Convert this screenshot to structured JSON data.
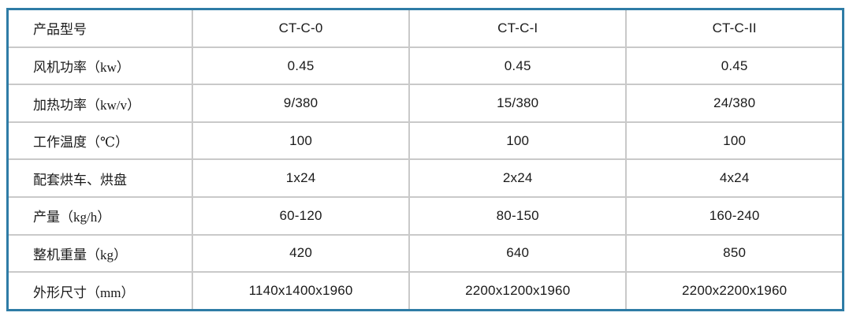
{
  "colors": {
    "outer_border": "#2e7ca6",
    "inner_grid": "#c9c9c9",
    "text": "#1a1a1a",
    "background": "#ffffff"
  },
  "table": {
    "header": {
      "label": "产品型号",
      "models": [
        "CT-C-0",
        "CT-C-I",
        "CT-C-II"
      ]
    },
    "rows": [
      {
        "label": "风机功率（kw）",
        "values": [
          "0.45",
          "0.45",
          "0.45"
        ]
      },
      {
        "label": "加热功率（kw/v）",
        "values": [
          "9/380",
          "15/380",
          "24/380"
        ]
      },
      {
        "label": "工作温度（℃）",
        "values": [
          "100",
          "100",
          "100"
        ]
      },
      {
        "label": "配套烘车、烘盘",
        "values": [
          "1x24",
          "2x24",
          "4x24"
        ]
      },
      {
        "label": "产量（kg/h）",
        "values": [
          "60-120",
          "80-150",
          "160-240"
        ]
      },
      {
        "label": "整机重量（kg）",
        "values": [
          "420",
          "640",
          "850"
        ]
      },
      {
        "label": "外形尺寸（mm）",
        "values": [
          "1140x1400x1960",
          "2200x1200x1960",
          "2200x2200x1960"
        ]
      }
    ]
  }
}
